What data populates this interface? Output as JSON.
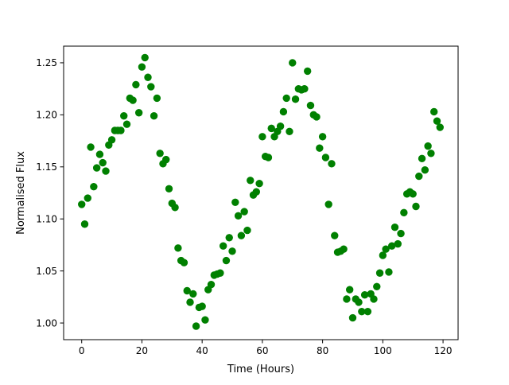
{
  "chart_data": {
    "type": "scatter",
    "title": "",
    "xlabel": "Time (Hours)",
    "ylabel": "Normalised Flux",
    "xlim": [
      -6.0,
      125.0
    ],
    "ylim": [
      0.984,
      1.266
    ],
    "xticks": [
      0,
      20,
      40,
      60,
      80,
      100,
      120
    ],
    "xtick_labels": [
      "0",
      "20",
      "40",
      "60",
      "80",
      "100",
      "120"
    ],
    "yticks": [
      1.0,
      1.05,
      1.1,
      1.15,
      1.2,
      1.25
    ],
    "ytick_labels": [
      "1.00",
      "1.05",
      "1.10",
      "1.15",
      "1.20",
      "1.25"
    ],
    "grid": false,
    "legend": "none",
    "marker_color": "#008000",
    "series": [
      {
        "x": [
          0,
          1,
          2,
          3,
          4,
          5,
          6,
          7,
          8,
          9,
          10,
          11,
          12,
          13,
          14,
          15,
          16,
          17,
          18,
          19,
          20,
          21,
          22,
          23,
          24,
          25,
          26,
          27,
          28,
          29,
          30,
          31,
          32,
          33,
          34,
          35,
          36,
          37,
          38,
          39,
          40,
          41,
          42,
          43,
          44,
          45,
          46,
          47,
          48,
          49,
          50,
          51,
          52,
          53,
          54,
          55,
          56,
          57,
          58,
          59,
          60,
          61,
          62,
          63,
          64,
          65,
          66,
          67,
          68,
          69,
          70,
          71,
          72,
          73,
          74,
          75,
          76,
          77,
          78,
          79,
          80,
          81,
          82,
          83,
          84,
          85,
          86,
          87,
          88,
          89,
          90,
          91,
          92,
          93,
          94,
          95,
          96,
          97,
          98,
          99,
          100,
          101,
          102,
          103,
          104,
          105,
          106,
          107,
          108,
          109,
          110,
          111,
          112,
          113,
          114,
          115,
          116,
          117,
          118,
          119
        ],
        "y": [
          1.114,
          1.095,
          1.12,
          1.169,
          1.131,
          1.149,
          1.162,
          1.154,
          1.146,
          1.171,
          1.176,
          1.185,
          1.185,
          1.185,
          1.199,
          1.191,
          1.216,
          1.214,
          1.229,
          1.202,
          1.246,
          1.255,
          1.236,
          1.227,
          1.199,
          1.216,
          1.163,
          1.153,
          1.157,
          1.129,
          1.115,
          1.111,
          1.072,
          1.06,
          1.058,
          1.031,
          1.02,
          1.028,
          0.997,
          1.015,
          1.016,
          1.003,
          1.032,
          1.037,
          1.046,
          1.047,
          1.048,
          1.074,
          1.06,
          1.082,
          1.069,
          1.116,
          1.103,
          1.084,
          1.107,
          1.089,
          1.137,
          1.123,
          1.126,
          1.134,
          1.179,
          1.16,
          1.159,
          1.187,
          1.179,
          1.184,
          1.189,
          1.203,
          1.216,
          1.184,
          1.25,
          1.215,
          1.225,
          1.224,
          1.225,
          1.242,
          1.209,
          1.2,
          1.198,
          1.168,
          1.179,
          1.159,
          1.114,
          1.153,
          1.084,
          1.068,
          1.069,
          1.071,
          1.023,
          1.032,
          1.005,
          1.023,
          1.02,
          1.011,
          1.027,
          1.011,
          1.028,
          1.023,
          1.035,
          1.048,
          1.065,
          1.071,
          1.049,
          1.074,
          1.092,
          1.076,
          1.086,
          1.106,
          1.124,
          1.126,
          1.124,
          1.112,
          1.141,
          1.158,
          1.147,
          1.17,
          1.163,
          1.203,
          1.194,
          1.188
        ]
      }
    ]
  }
}
